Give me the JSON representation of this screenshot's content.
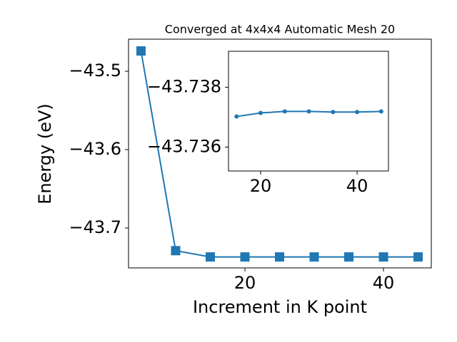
{
  "chart_data": [
    {
      "type": "line",
      "title": "Converged at 4x4x4 Automatic Mesh 20",
      "xlabel": "Increment in K point",
      "ylabel": "Energy (eV)",
      "x": [
        5,
        10,
        15,
        20,
        25,
        30,
        35,
        40,
        45
      ],
      "series": [
        {
          "color": "#1f77b4",
          "marker": "square",
          "values": [
            -43.474,
            -43.729,
            -43.737,
            -43.737,
            -43.737,
            -43.737,
            -43.737,
            -43.737,
            -43.737
          ]
        }
      ],
      "xlim": [
        3.2,
        46.9
      ],
      "xticks": [
        20,
        40
      ],
      "ylim": [
        -43.751,
        -43.459
      ],
      "yticks": [
        {
          "value": -43.7,
          "label": "−43.7"
        },
        {
          "value": -43.6,
          "label": "−43.6"
        },
        {
          "value": -43.5,
          "label": "−43.5"
        }
      ]
    },
    {
      "type": "line",
      "x": [
        15,
        20,
        25,
        30,
        35,
        40,
        45
      ],
      "series": [
        {
          "color": "#1f77b4",
          "marker": "circle",
          "values": [
            -43.73702,
            -43.73714,
            -43.73719,
            -43.73719,
            -43.73717,
            -43.73717,
            -43.73719
          ]
        }
      ],
      "xlim": [
        13.33,
        46.5
      ],
      "xticks": [
        20,
        40
      ],
      "ylim": [
        -43.7352,
        -43.7392
      ],
      "yticks": [
        {
          "value": -43.736,
          "label": "−43.736"
        },
        {
          "value": -43.738,
          "label": "−43.738"
        }
      ]
    }
  ]
}
